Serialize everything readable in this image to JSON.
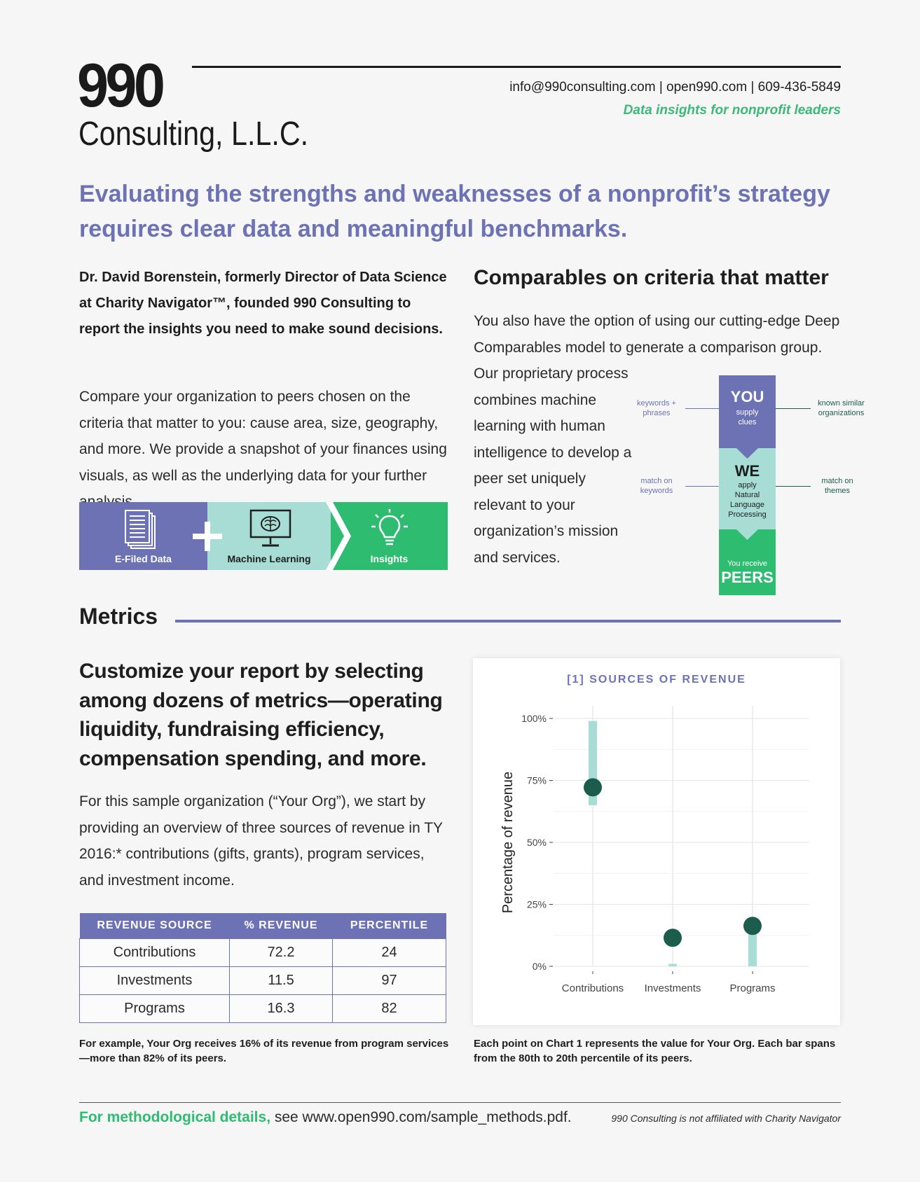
{
  "header": {
    "logo_number": "990",
    "logo_company": "Consulting, L.L.C.",
    "contact": "info@990consulting.com | open990.com | 609-436-5849",
    "tagline": "Data insights for nonprofit leaders"
  },
  "headline": "Evaluating the strengths and weaknesses of a nonprofit’s strategy requires clear data and meaningful benchmarks.",
  "intro": {
    "bio": "Dr. David Borenstein, formerly Director of Data Science at Charity Navigator™, founded 990 Consulting to report the insights you need to make sound decisions.",
    "compare": "Compare your organization to peers chosen on the criteria that matter to you: cause area, size, geography, and more. We provide a snapshot of your finances using visuals, as well as the underlying data for your further analysis."
  },
  "banner": {
    "efiled_label": "E-Filed Data",
    "ml_label": "Machine Learning",
    "insights_label": "Insights",
    "icons": [
      "document-icon",
      "plus-icon",
      "monitor-brain-icon",
      "lightbulb-icon"
    ],
    "colors": {
      "purple": "#6d72b5",
      "mint": "#a8ddd5",
      "green": "#2ebc70"
    }
  },
  "comparables": {
    "title": "Comparables on criteria that matter",
    "text1": "You also have the option of using our cutting-edge Deep Comparables model to generate a comparison group.",
    "text2": "Our proprietary process combines machine learning with human intelligence to develop a peer set uniquely relevant to your organization’s mission and services."
  },
  "diagram": {
    "you_big": "YOU",
    "you_small": "supply clues",
    "we_big": "WE",
    "we_small": "apply Natural Language Processing",
    "peers_small": "You receive",
    "peers_big": "PEERS",
    "left_top": "keywords + phrases",
    "right_top": "known similar organizations",
    "left_mid": "match on keywords",
    "right_mid": "match on themes"
  },
  "metrics": {
    "title": "Metrics",
    "customize": "Customize your report by selecting among dozens of metrics—operating liquidity, fundraising efficiency, compensation spending, and more.",
    "sample": "For this sample organization (“Your Org”), we start by providing an overview of three sources of revenue in TY 2016:* contributions (gifts, grants), program services, and investment income."
  },
  "table": {
    "headers": [
      "REVENUE SOURCE",
      "% REVENUE",
      "PERCENTILE"
    ],
    "rows": [
      [
        "Contributions",
        "72.2",
        "24"
      ],
      [
        "Investments",
        "11.5",
        "97"
      ],
      [
        "Programs",
        "16.3",
        "82"
      ]
    ]
  },
  "notes": {
    "left": "For example, Your Org receives 16% of its revenue from program services—more than 82% of its peers.",
    "right": "Each point on Chart 1 represents the value for Your Org. Each bar spans from the 80th to 20th percentile of its peers."
  },
  "chart_data": {
    "type": "scatter",
    "title": "[1] SOURCES OF REVENUE",
    "xlabel": "",
    "ylabel": "Percentage of revenue",
    "categories": [
      "Contributions",
      "Investments",
      "Programs"
    ],
    "y_ticks": [
      "0%",
      "25%",
      "50%",
      "75%",
      "100%"
    ],
    "ylim": [
      0,
      100
    ],
    "series": [
      {
        "values": [
          72.2,
          11.5,
          16.3
        ]
      }
    ],
    "ranges": [
      [
        65,
        99
      ],
      [
        0,
        1
      ],
      [
        0,
        16
      ]
    ],
    "grid": true,
    "colors": {
      "point": "#1b5c4c",
      "range": "#a8ddd5",
      "title": "#6d72b5"
    }
  },
  "footer": {
    "left_highlight": "For methodological details,",
    "left_rest": " see www.open990.com/sample_methods.pdf.",
    "right": "990 Consulting is not affiliated with Charity Navigator"
  }
}
